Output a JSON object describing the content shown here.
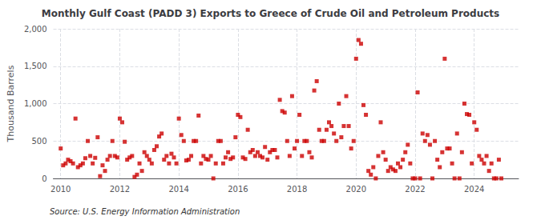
{
  "chart_data": {
    "type": "scatter",
    "title": "Monthly Gulf Coast (PADD 3) Exports to Greece of Crude Oil and Petroleum Products",
    "ylabel": "Thousand Barrels",
    "annotation": "Source: U.S. Energy Information Administration",
    "color": "#cc0000",
    "marker": "square",
    "grid": true,
    "xlim": [
      2009.75,
      2025.5
    ],
    "xticks": [
      2010,
      2012,
      2014,
      2016,
      2018,
      2020,
      2022,
      2024
    ],
    "ylim": [
      0,
      2000
    ],
    "yticks": [
      0,
      500,
      {
        "value": 1000,
        "label": "1,000"
      },
      {
        "value": 1500,
        "label": "1,500"
      },
      {
        "value": 2000,
        "label": "2,000"
      }
    ],
    "x": [
      2010.0,
      2010.083,
      2010.167,
      2010.25,
      2010.333,
      2010.417,
      2010.5,
      2010.583,
      2010.667,
      2010.75,
      2010.833,
      2010.917,
      2011.0,
      2011.083,
      2011.167,
      2011.25,
      2011.333,
      2011.417,
      2011.5,
      2011.583,
      2011.667,
      2011.75,
      2011.833,
      2011.917,
      2012.0,
      2012.083,
      2012.167,
      2012.25,
      2012.333,
      2012.417,
      2012.5,
      2012.583,
      2012.667,
      2012.75,
      2012.833,
      2012.917,
      2013.0,
      2013.083,
      2013.167,
      2013.25,
      2013.333,
      2013.417,
      2013.5,
      2013.583,
      2013.667,
      2013.75,
      2013.833,
      2013.917,
      2014.0,
      2014.083,
      2014.167,
      2014.25,
      2014.333,
      2014.417,
      2014.5,
      2014.583,
      2014.667,
      2014.75,
      2014.833,
      2014.917,
      2015.0,
      2015.083,
      2015.167,
      2015.25,
      2015.333,
      2015.417,
      2015.5,
      2015.583,
      2015.667,
      2015.75,
      2015.833,
      2015.917,
      2016.0,
      2016.083,
      2016.167,
      2016.25,
      2016.333,
      2016.417,
      2016.5,
      2016.583,
      2016.667,
      2016.75,
      2016.833,
      2016.917,
      2017.0,
      2017.083,
      2017.167,
      2017.25,
      2017.333,
      2017.417,
      2017.5,
      2017.583,
      2017.667,
      2017.75,
      2017.833,
      2017.917,
      2018.0,
      2018.083,
      2018.167,
      2018.25,
      2018.333,
      2018.417,
      2018.5,
      2018.583,
      2018.667,
      2018.75,
      2018.833,
      2018.917,
      2019.0,
      2019.083,
      2019.167,
      2019.25,
      2019.333,
      2019.417,
      2019.5,
      2019.583,
      2019.667,
      2019.75,
      2019.833,
      2019.917,
      2020.0,
      2020.083,
      2020.167,
      2020.25,
      2020.333,
      2020.417,
      2020.5,
      2020.583,
      2020.667,
      2020.75,
      2020.833,
      2020.917,
      2021.0,
      2021.083,
      2021.167,
      2021.25,
      2021.333,
      2021.417,
      2021.5,
      2021.583,
      2021.667,
      2021.75,
      2021.833,
      2021.917,
      2022.0,
      2022.083,
      2022.167,
      2022.25,
      2022.333,
      2022.417,
      2022.5,
      2022.583,
      2022.667,
      2022.75,
      2022.833,
      2022.917,
      2023.0,
      2023.083,
      2023.167,
      2023.25,
      2023.333,
      2023.417,
      2023.5,
      2023.583,
      2023.667,
      2023.75,
      2023.833,
      2023.917,
      2024.0,
      2024.083,
      2024.167,
      2024.25,
      2024.333,
      2024.417,
      2024.5,
      2024.583,
      2024.667,
      2024.75,
      2024.833,
      2024.917
    ],
    "values": [
      400,
      175,
      200,
      250,
      230,
      200,
      800,
      150,
      175,
      200,
      270,
      500,
      300,
      200,
      275,
      550,
      30,
      175,
      100,
      250,
      300,
      500,
      300,
      280,
      800,
      750,
      490,
      250,
      280,
      300,
      20,
      50,
      200,
      100,
      350,
      300,
      250,
      200,
      380,
      430,
      560,
      600,
      250,
      300,
      200,
      330,
      280,
      200,
      800,
      580,
      500,
      240,
      250,
      300,
      500,
      500,
      840,
      200,
      300,
      260,
      250,
      300,
      0,
      200,
      500,
      500,
      200,
      280,
      350,
      260,
      280,
      550,
      850,
      820,
      280,
      260,
      650,
      350,
      380,
      300,
      350,
      300,
      280,
      420,
      250,
      350,
      380,
      380,
      280,
      1050,
      900,
      880,
      500,
      300,
      1100,
      400,
      500,
      850,
      300,
      500,
      500,
      350,
      280,
      1175,
      1300,
      650,
      500,
      500,
      650,
      750,
      700,
      600,
      500,
      1000,
      550,
      700,
      1100,
      700,
      400,
      500,
      1600,
      1850,
      1800,
      980,
      850,
      100,
      50,
      150,
      0,
      300,
      750,
      350,
      250,
      100,
      150,
      120,
      100,
      200,
      150,
      250,
      350,
      450,
      200,
      0,
      0,
      1150,
      0,
      600,
      500,
      580,
      450,
      0,
      500,
      250,
      150,
      350,
      1600,
      400,
      400,
      200,
      0,
      600,
      0,
      350,
      1000,
      860,
      850,
      200,
      750,
      650,
      300,
      250,
      200,
      300,
      100,
      200,
      0,
      0,
      250,
      0
    ]
  }
}
